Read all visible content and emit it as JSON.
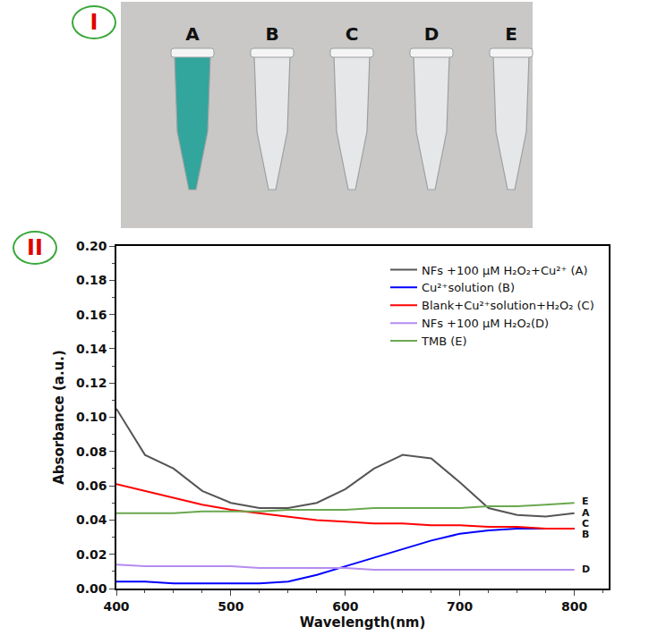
{
  "panels": {
    "photo": {
      "label": "I",
      "tubes": [
        "A",
        "B",
        "C",
        "D",
        "E"
      ]
    },
    "chart": {
      "label": "II"
    }
  },
  "chart_data": {
    "type": "line",
    "x_label": "Wavelength(nm)",
    "y_label": "Absorbance (a.u.)",
    "x": [
      400,
      425,
      450,
      475,
      500,
      525,
      550,
      575,
      600,
      625,
      650,
      675,
      700,
      725,
      750,
      775,
      800
    ],
    "xlim": [
      400,
      830
    ],
    "xticks": [
      400,
      500,
      600,
      700,
      800
    ],
    "ylim": [
      0,
      0.2
    ],
    "yticks": [
      {
        "value": 0,
        "label": "0.00"
      },
      {
        "value": 0.02,
        "label": "0.02"
      },
      {
        "value": 0.04,
        "label": "0.04"
      },
      {
        "value": 0.06,
        "label": "0.06"
      },
      {
        "value": 0.08,
        "label": "0.08"
      },
      {
        "value": 0.1,
        "label": "0.10"
      },
      {
        "value": 0.12,
        "label": "0.12"
      },
      {
        "value": 0.14,
        "label": "0.14"
      },
      {
        "value": 0.16,
        "label": "0.16"
      },
      {
        "value": 0.18,
        "label": "0.18"
      },
      {
        "value": 0.2,
        "label": "0.20"
      }
    ],
    "grid": false,
    "legend": "upper right",
    "series": [
      {
        "name": "NFs +100 μM H₂O₂+Cu²⁺ (A)",
        "end_label": "A",
        "color": "#555555",
        "values": [
          0.105,
          0.078,
          0.07,
          0.057,
          0.05,
          0.047,
          0.047,
          0.05,
          0.058,
          0.07,
          0.078,
          0.076,
          0.062,
          0.047,
          0.043,
          0.042,
          0.044
        ]
      },
      {
        "name": "Cu²⁺solution (B)",
        "end_label": "B",
        "color": "#0000ff",
        "values": [
          0.004,
          0.004,
          0.003,
          0.003,
          0.003,
          0.003,
          0.004,
          0.008,
          0.013,
          0.018,
          0.023,
          0.028,
          0.032,
          0.034,
          0.035,
          0.035,
          0.035
        ]
      },
      {
        "name": "Blank+Cu²⁺solution+H₂O₂ (C)",
        "end_label": "C",
        "color": "#ff0000",
        "values": [
          0.061,
          0.057,
          0.053,
          0.049,
          0.046,
          0.044,
          0.042,
          0.04,
          0.039,
          0.038,
          0.038,
          0.037,
          0.037,
          0.036,
          0.036,
          0.035,
          0.035
        ]
      },
      {
        "name": "NFs +100 μM H₂O₂(D)",
        "end_label": "D",
        "color": "#b58cf0",
        "values": [
          0.014,
          0.013,
          0.013,
          0.013,
          0.013,
          0.012,
          0.012,
          0.012,
          0.012,
          0.011,
          0.011,
          0.011,
          0.011,
          0.011,
          0.011,
          0.011,
          0.011
        ]
      },
      {
        "name": "TMB (E)",
        "end_label": "E",
        "color": "#6aa84f",
        "values": [
          0.044,
          0.044,
          0.044,
          0.045,
          0.045,
          0.045,
          0.046,
          0.046,
          0.046,
          0.047,
          0.047,
          0.047,
          0.047,
          0.048,
          0.048,
          0.049,
          0.05
        ]
      }
    ]
  }
}
